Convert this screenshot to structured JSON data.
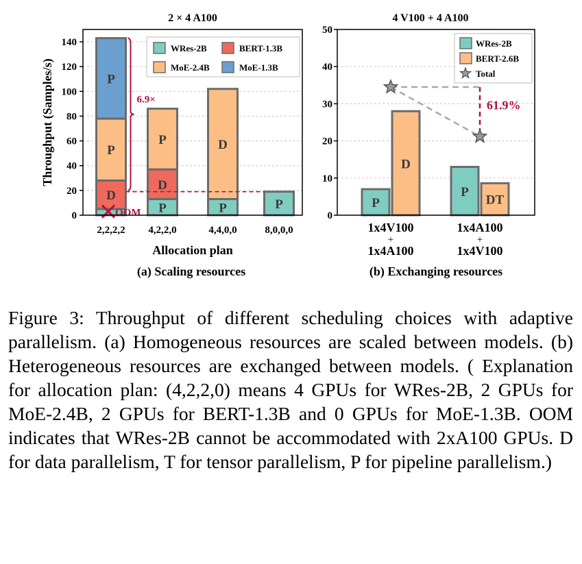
{
  "figure": {
    "caption": "Figure 3: Throughput of different scheduling choices with adaptive parallelism. (a) Homogeneous resources are scaled between models. (b) Heterogeneous resources are exchanged between models. ( Explanation for allocation plan: (4,2,2,0) means 4 GPUs for WRes-2B, 2 GPUs for MoE-2.4B, 2 GPUs for BERT-1.3B and 0 GPUs for MoE-1.3B. OOM indicates that WRes-2B cannot be accommodated with 2xA100 GPUs. D for data parallelism, T for tensor parallelism, P for pipeline parallelism.)"
  },
  "colors": {
    "wres": "#7fcdc1",
    "bert": "#f0695d",
    "moe24": "#fdbe85",
    "moe13": "#6a9fcf",
    "outline": "#6b6b6b",
    "accent": "#b0123a",
    "total_line": "#a8a8a8",
    "total_marker": "#9a9a9a"
  },
  "chart_data": [
    {
      "type": "bar",
      "stacked": true,
      "title": "2 × 4 A100",
      "subtitle": "(a) Scaling resources",
      "xlabel": "Allocation plan",
      "ylabel": "Throughput (Samples/s)",
      "ylim": [
        0,
        150
      ],
      "yticks": [
        0,
        20,
        40,
        60,
        80,
        100,
        120,
        140
      ],
      "grid": true,
      "legend": "top",
      "legend_columns": 2,
      "categories": [
        "2,2,2,2",
        "4,2,2,0",
        "4,4,0,0",
        "8,0,0,0"
      ],
      "series": [
        {
          "name": "WRes-2B",
          "color_key": "wres",
          "values": [
            5,
            13,
            13,
            19
          ],
          "labels": [
            "",
            "P",
            "P",
            "P"
          ]
        },
        {
          "name": "BERT-1.3B",
          "color_key": "bert",
          "values": [
            23,
            24,
            0,
            0
          ],
          "labels": [
            "D",
            "D",
            "",
            ""
          ]
        },
        {
          "name": "MoE-2.4B",
          "color_key": "moe24",
          "values": [
            50,
            49,
            89,
            0
          ],
          "labels": [
            "P",
            "P",
            "D",
            ""
          ]
        },
        {
          "name": "MoE-1.3B",
          "color_key": "moe13",
          "values": [
            65,
            0,
            0,
            0
          ],
          "labels": [
            "P",
            "",
            "",
            ""
          ]
        }
      ],
      "annotations": {
        "oom": {
          "text": "OOM",
          "category": "2,2,2,2"
        },
        "ratio": {
          "text": "6.9×",
          "from": 20,
          "to": 143,
          "category": "2,2,2,2"
        },
        "reference_line": {
          "y": 19,
          "from_category": "2,2,2,2",
          "to_category": "8,0,0,0"
        }
      }
    },
    {
      "type": "bar",
      "stacked": false,
      "title": "4 V100 + 4 A100",
      "subtitle": "(b) Exchanging resources",
      "ylim": [
        0,
        50
      ],
      "yticks": [
        0,
        10,
        20,
        30,
        40,
        50
      ],
      "grid": true,
      "legend": "top-right",
      "categories": [
        {
          "line1": "1x4V100",
          "plus": "+",
          "line2": "1x4A100"
        },
        {
          "line1": "1x4A100",
          "plus": "+",
          "line2": "1x4V100"
        }
      ],
      "series": [
        {
          "name": "WRes-2B",
          "color_key": "wres",
          "values": [
            7,
            13
          ],
          "labels": [
            "P",
            "P"
          ]
        },
        {
          "name": "BERT-2.6B",
          "color_key": "moe24",
          "values": [
            28,
            8.6
          ],
          "labels": [
            "D",
            "DT"
          ]
        }
      ],
      "total": {
        "name": "Total",
        "values": [
          34.5,
          21.2
        ]
      },
      "annotations": {
        "improvement": {
          "text": "61.9%"
        }
      }
    }
  ]
}
